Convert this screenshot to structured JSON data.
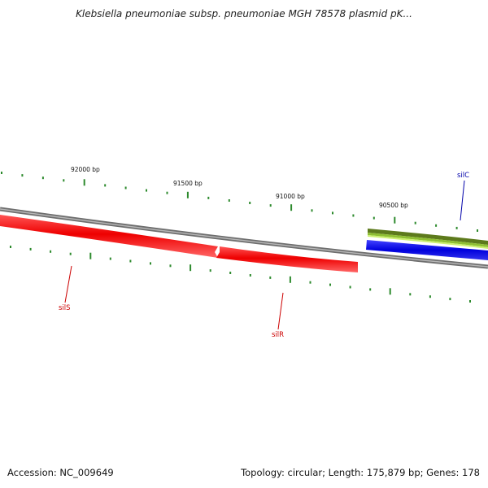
{
  "title": "Klebsiella pneumoniae subsp. pneumoniae MGH 78578 plasmid pK...",
  "footer": {
    "accession": "Accession: NC_009649",
    "summary": "Topology: circular; Length: 175,879 bp; Genes: 178"
  },
  "ruler": {
    "labels": [
      "92000 bp",
      "91500 bp",
      "91000 bp",
      "90500 bp"
    ]
  },
  "genes": [
    {
      "name": "silS",
      "strand": "reverse",
      "color": "#ee0000"
    },
    {
      "name": "silR",
      "strand": "reverse",
      "color": "#ee0000"
    },
    {
      "name": "silC",
      "strand": "forward",
      "color": "#0000dd"
    }
  ],
  "colors": {
    "backbone": "#888888",
    "tick": "#2d8a2d",
    "gene_reverse": "#ee0000",
    "gene_forward": "#0000dd",
    "gc_track": "#668822",
    "gc_track_light": "#bbee55",
    "label_silS": "#cc0000",
    "label_silR": "#cc0000",
    "label_silC": "#0000aa"
  }
}
